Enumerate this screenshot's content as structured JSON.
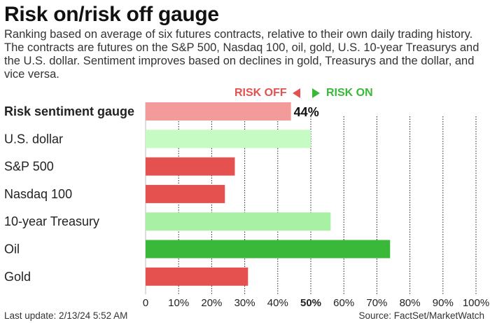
{
  "title": "Risk on/risk off gauge",
  "subtitle": "Ranking based on average of six futures contracts, relative to their own daily trading history. The contracts are futures on the S&P 500, Nasdaq 100, oil, gold, U.S. 10-year Treasurys and the U.S. dollar. Sentiment improves based on declines in gold, Treasurys and the dollar, and vice versa.",
  "legend": {
    "risk_off": "RISK OFF",
    "risk_on": "RISK ON"
  },
  "footer": {
    "last_update": "Last update: 2/13/24 5:52 AM",
    "source": "Source: FactSet/MarketWatch"
  },
  "chart_data": {
    "type": "bar",
    "orientation": "horizontal",
    "categories": [
      "Risk sentiment gauge",
      "U.S. dollar",
      "S&P 500",
      "Nasdaq 100",
      "10-year Treasury",
      "Oil",
      "Gold"
    ],
    "values": [
      44,
      50,
      27,
      24,
      56,
      74,
      31
    ],
    "bar_colors": [
      "#f29b9a",
      "#c6fbc3",
      "#e4514f",
      "#e4514f",
      "#a8f0a4",
      "#3ab83a",
      "#e4514f"
    ],
    "data_labels": [
      "44%",
      "",
      "",
      "",
      "",
      "",
      ""
    ],
    "xlim": [
      0,
      100
    ],
    "xticks": [
      0,
      10,
      20,
      30,
      40,
      50,
      60,
      70,
      80,
      90,
      100
    ],
    "xtick_labels": [
      "0",
      "10%",
      "20%",
      "30%",
      "40%",
      "50%",
      "60%",
      "70%",
      "80%",
      "90%",
      "100%"
    ],
    "bold_category": "Risk sentiment gauge",
    "bold_tick": "50%",
    "grid": true
  }
}
